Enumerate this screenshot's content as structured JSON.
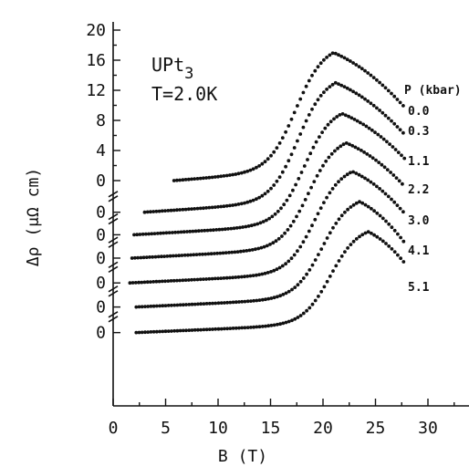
{
  "chart_data": {
    "type": "scatter",
    "title": "",
    "xlabel": "B  (T)",
    "ylabel": "Δρ  (μΩ cm)",
    "xlim": [
      0,
      34
    ],
    "x_ticks": [
      0,
      5,
      10,
      15,
      20,
      25,
      30
    ],
    "y_ticks_upper": [
      0,
      4,
      8,
      12,
      16,
      20
    ],
    "y_ticks_offset": [
      "0",
      "0",
      "0",
      "0",
      "0",
      "0"
    ],
    "annotation": {
      "material": "UPt",
      "material_sub": "3",
      "temperature": "T=2.0K"
    },
    "legend_title": "P (kbar)",
    "series": [
      {
        "name": "0.0",
        "x_start": 5.8,
        "x_end": 27.8,
        "peak_B": 21.0,
        "peak_value": 17.0,
        "start_value": 0.0,
        "end_value": 9.7
      },
      {
        "name": "0.3",
        "x_start": 3.0,
        "x_end": 27.8,
        "peak_B": 21.2,
        "peak_value": 13.0,
        "start_value": 0.0,
        "end_value": 6.1
      },
      {
        "name": "1.1",
        "x_start": 2.0,
        "x_end": 27.8,
        "peak_B": 21.8,
        "peak_value": 8.9,
        "start_value": 0.0,
        "end_value": 2.9
      },
      {
        "name": "2.2",
        "x_start": 1.8,
        "x_end": 27.8,
        "peak_B": 22.2,
        "peak_value": 5.0,
        "start_value": 0.0,
        "end_value": -0.8
      },
      {
        "name": "3.0",
        "x_start": 1.6,
        "x_end": 27.8,
        "peak_B": 22.8,
        "peak_value": 1.2,
        "start_value": 0.0,
        "end_value": -4.4
      },
      {
        "name": "4.1",
        "x_start": 2.2,
        "x_end": 27.8,
        "peak_B": 23.5,
        "peak_value": -2.8,
        "start_value": 0.0,
        "end_value": -8.3
      },
      {
        "name": "5.1",
        "x_start": 2.2,
        "x_end": 27.8,
        "peak_B": 24.3,
        "peak_value": -6.8,
        "start_value": 0.0,
        "end_value": -11.0
      }
    ],
    "series_offsets": [
      0,
      -4.2,
      -7.2,
      -10.3,
      -13.6,
      -16.8,
      -20.2
    ],
    "grid": false,
    "legend_position": "right"
  }
}
